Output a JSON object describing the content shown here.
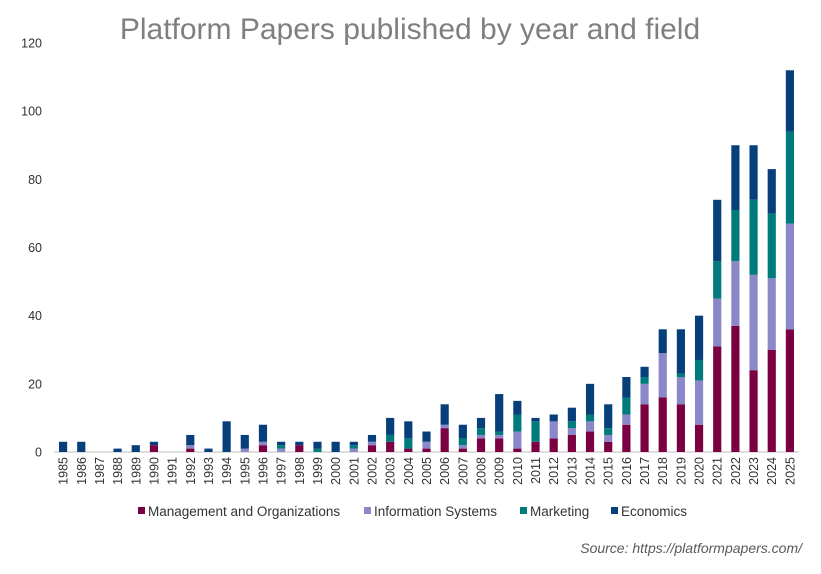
{
  "chart_data": {
    "type": "bar",
    "stacked": true,
    "title": "Platform Papers published by year and field",
    "xlabel": "",
    "ylabel": "",
    "ylim": [
      0,
      120
    ],
    "yticks": [
      0,
      20,
      40,
      60,
      80,
      100,
      120
    ],
    "grid": false,
    "legend_position": "bottom",
    "source": "Source: https://platformpapers.com/",
    "categories": [
      "1985",
      "1986",
      "1987",
      "1988",
      "1989",
      "1990",
      "1991",
      "1992",
      "1993",
      "1994",
      "1995",
      "1996",
      "1997",
      "1998",
      "1999",
      "2000",
      "2001",
      "2002",
      "2003",
      "2004",
      "2005",
      "2006",
      "2007",
      "2008",
      "2009",
      "2010",
      "2011",
      "2012",
      "2013",
      "2014",
      "2015",
      "2016",
      "2017",
      "2018",
      "2019",
      "2020",
      "2021",
      "2022",
      "2023",
      "2024",
      "2025"
    ],
    "series": [
      {
        "name": "Management and Organizations",
        "color": "#7b0041",
        "values": [
          0,
          0,
          0,
          0,
          0,
          2,
          0,
          1,
          0,
          0,
          0,
          2,
          0,
          2,
          0,
          0,
          0,
          2,
          3,
          1,
          1,
          7,
          1,
          4,
          4,
          1,
          3,
          4,
          5,
          6,
          3,
          8,
          14,
          16,
          14,
          8,
          31,
          37,
          24,
          30,
          36
        ]
      },
      {
        "name": "Information Systems",
        "color": "#8a88c8",
        "values": [
          0,
          0,
          0,
          0,
          0,
          0,
          0,
          1,
          0,
          0,
          1,
          1,
          1,
          0,
          0,
          0,
          1,
          1,
          0,
          0,
          2,
          1,
          1,
          1,
          1,
          5,
          0,
          5,
          2,
          3,
          2,
          3,
          6,
          13,
          8,
          13,
          14,
          19,
          28,
          21,
          31
        ]
      },
      {
        "name": "Marketing",
        "color": "#007b7b",
        "values": [
          0,
          0,
          0,
          0,
          0,
          0,
          0,
          0,
          0,
          0,
          0,
          0,
          1,
          0,
          1,
          0,
          1,
          0,
          2,
          3,
          0,
          0,
          2,
          2,
          1,
          5,
          6,
          0,
          2,
          2,
          2,
          5,
          2,
          0,
          1,
          6,
          11,
          15,
          22,
          19,
          27
        ]
      },
      {
        "name": "Economics",
        "color": "#063f7a",
        "values": [
          3,
          3,
          0,
          1,
          2,
          1,
          0,
          3,
          1,
          9,
          4,
          5,
          1,
          1,
          2,
          3,
          1,
          2,
          5,
          5,
          3,
          6,
          4,
          3,
          11,
          4,
          1,
          2,
          4,
          9,
          7,
          6,
          3,
          7,
          13,
          13,
          18,
          19,
          16,
          13,
          18
        ]
      }
    ]
  }
}
